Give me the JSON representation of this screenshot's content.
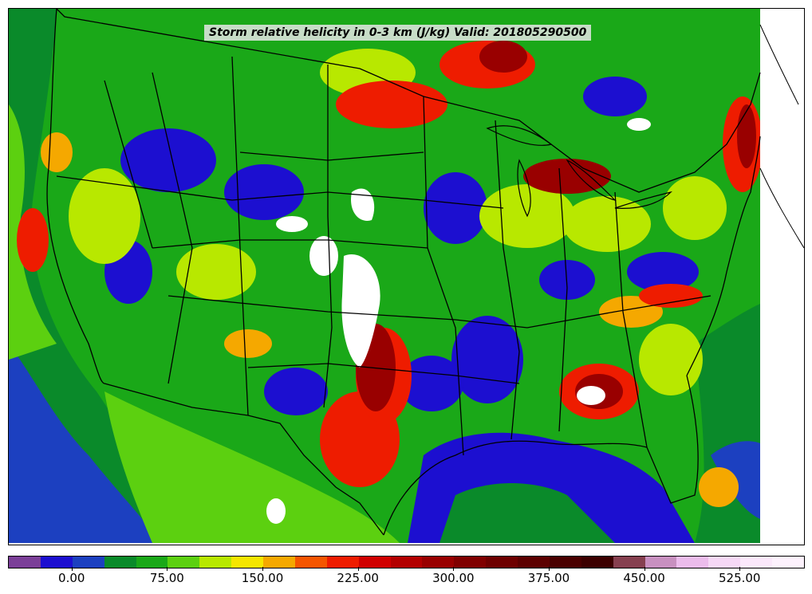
{
  "title": "Storm relative helicity in 0-3 km (J/kg) Valid: 201805290500",
  "colorbar": {
    "colors": [
      "#7b3f98",
      "#1c0fd0",
      "#1c40c0",
      "#0a8a2a",
      "#1aa818",
      "#5cd010",
      "#b8e800",
      "#f5e600",
      "#f5a800",
      "#f55500",
      "#ee1c00",
      "#d00000",
      "#b30000",
      "#990000",
      "#800000",
      "#6e0000",
      "#5c0000",
      "#4a0000",
      "#3c0000",
      "#864050",
      "#c890c0",
      "#ecbcec",
      "#f6d8f6",
      "#fbe8fb",
      "#fdf2fd"
    ],
    "ticks": [
      "0.00",
      "75.00",
      "150.00",
      "225.00",
      "300.00",
      "375.00",
      "450.00",
      "525.00"
    ]
  },
  "map": {
    "features": [
      "ocean",
      "us-state-boundaries",
      "coastlines",
      "great-lakes"
    ],
    "field_colors": {
      "low": "#1c0fd0",
      "mid": "#5cd010",
      "high": "#d00000",
      "extreme": "#ffffff"
    }
  }
}
